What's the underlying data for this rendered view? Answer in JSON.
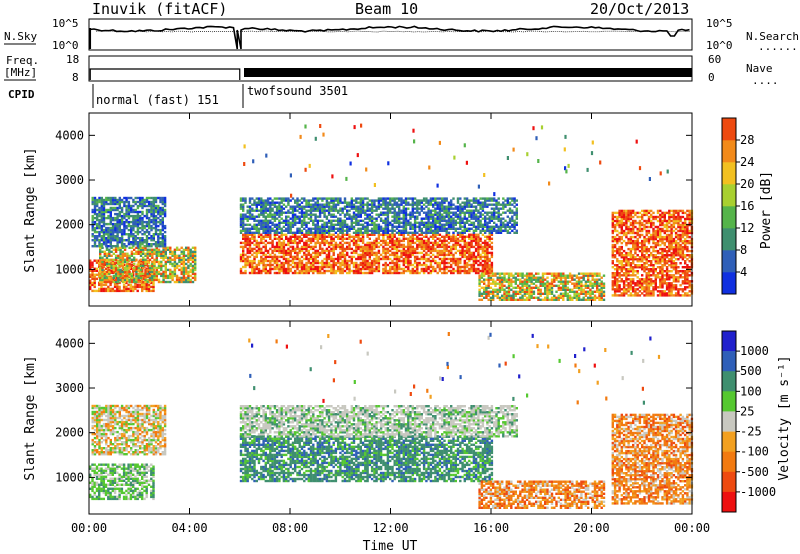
{
  "header": {
    "station": "Inuvik (fitACF)",
    "beam": "Beam 10",
    "date": "20/Oct/2013"
  },
  "noise_panel": {
    "left_label": "N.Sky",
    "right_label": "N.Search",
    "y_ticks_left": [
      "10^5",
      "10^0"
    ],
    "y_ticks_right": [
      "10^5",
      "10^0"
    ],
    "right_dots": "........"
  },
  "freq_panel": {
    "left_label_1": "Freq.",
    "left_label_2": "[MHz]",
    "right_label": "Nave",
    "y_ticks_left": [
      "18",
      "8"
    ],
    "y_ticks_right": [
      "60",
      "0"
    ],
    "right_dots": "...."
  },
  "cpid": {
    "label": "CPID",
    "programs": [
      "normal (fast) 151",
      "twofsound 3501"
    ]
  },
  "colors": {
    "power": [
      "#1030e0",
      "#2f5fb8",
      "#3f8f6f",
      "#55b44a",
      "#a8d030",
      "#f2c020",
      "#f28a1a",
      "#ee4a10",
      "#ee1010"
    ],
    "velocity": [
      "#2020cc",
      "#2f5fb8",
      "#3f8f6f",
      "#55c830",
      "#c8c8c0",
      "#f2a020",
      "#f27a10",
      "#ee4a10",
      "#ee1010"
    ]
  },
  "chart_data": [
    {
      "type": "heatmap",
      "title": "",
      "xlabel": "Time UT",
      "ylabel": "Slant Range [km]",
      "xlim": [
        0,
        24
      ],
      "ylim": [
        180,
        4500
      ],
      "x_ticks": [
        "00:00",
        "04:00",
        "08:00",
        "12:00",
        "16:00",
        "20:00",
        "00:00"
      ],
      "y_ticks": [
        "1000",
        "2000",
        "3000",
        "4000"
      ],
      "colorbar_label": "Power [dB]",
      "colorbar_ticks": [
        "4",
        "8",
        "12",
        "16",
        "20",
        "24",
        "28"
      ],
      "bands": [
        {
          "t0": 0.0,
          "t1": 2.6,
          "r0": 500,
          "r1": 1200,
          "level": "high"
        },
        {
          "t0": 0.4,
          "t1": 4.2,
          "r0": 700,
          "r1": 1500,
          "level": "mid"
        },
        {
          "t0": 0.1,
          "t1": 3.0,
          "r0": 1500,
          "r1": 2600,
          "level": "low"
        },
        {
          "t0": 6.0,
          "t1": 16.0,
          "r0": 900,
          "r1": 1800,
          "level": "high"
        },
        {
          "t0": 6.0,
          "t1": 17.0,
          "r0": 1800,
          "r1": 2600,
          "level": "low"
        },
        {
          "t0": 15.5,
          "t1": 20.5,
          "r0": 300,
          "r1": 900,
          "level": "mid"
        },
        {
          "t0": 20.8,
          "t1": 24.0,
          "r0": 400,
          "r1": 2300,
          "level": "high"
        }
      ]
    },
    {
      "type": "heatmap",
      "title": "",
      "xlabel": "Time UT",
      "ylabel": "Slant Range [km]",
      "xlim": [
        0,
        24
      ],
      "ylim": [
        180,
        4500
      ],
      "x_ticks": [
        "00:00",
        "04:00",
        "08:00",
        "12:00",
        "16:00",
        "20:00",
        "00:00"
      ],
      "y_ticks": [
        "1000",
        "2000",
        "3000",
        "4000"
      ],
      "colorbar_label": "Velocity [m s⁻¹]",
      "colorbar_ticks": [
        "1000",
        "500",
        "100",
        "25",
        "-25",
        "-100",
        "-500",
        "-1000"
      ],
      "bands": [
        {
          "t0": 0.0,
          "t1": 2.6,
          "r0": 500,
          "r1": 1300,
          "level": "green"
        },
        {
          "t0": 0.1,
          "t1": 3.0,
          "r0": 1500,
          "r1": 2600,
          "level": "mixed"
        },
        {
          "t0": 6.0,
          "t1": 16.0,
          "r0": 900,
          "r1": 1900,
          "level": "darkgreen"
        },
        {
          "t0": 6.0,
          "t1": 17.0,
          "r0": 1900,
          "r1": 2600,
          "level": "gray"
        },
        {
          "t0": 15.5,
          "t1": 20.5,
          "r0": 300,
          "r1": 900,
          "level": "orange"
        },
        {
          "t0": 20.8,
          "t1": 24.0,
          "r0": 400,
          "r1": 2400,
          "level": "orange"
        }
      ]
    }
  ]
}
